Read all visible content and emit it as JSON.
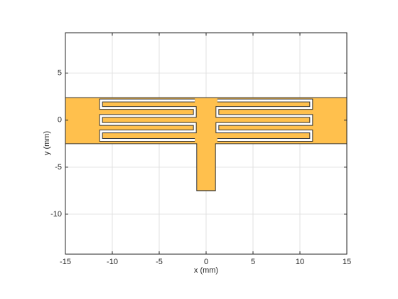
{
  "chart_data": {
    "type": "geometry",
    "xlabel": "x (mm)",
    "ylabel": "y (mm)",
    "xlim": [
      -15,
      15
    ],
    "ylim": [
      -14.25,
      9.3
    ],
    "xticks": [
      -15,
      -10,
      -5,
      0,
      5,
      10,
      15
    ],
    "yticks": [
      -10,
      -5,
      0,
      5
    ],
    "grid": true,
    "fill_color": "#ffc04d",
    "slot_color": "#ffffff",
    "edge_color": "#333333",
    "body": {
      "x": [
        -15,
        15,
        15,
        1,
        1,
        -1,
        -1,
        -15
      ],
      "y": [
        2.4,
        2.4,
        -2.5,
        -2.5,
        -7.5,
        -7.5,
        -2.5,
        -2.5
      ]
    },
    "slots": [
      {
        "x": [
          -1.2,
          -11.2,
          -11.2,
          -1.2,
          -1.2,
          -11.2,
          -11.2,
          -1.2,
          -1.2,
          -11.2,
          -11.2,
          -1.2
        ],
        "y": [
          2.1,
          2.1,
          1.3,
          1.3,
          0.45,
          0.45,
          -0.4,
          -0.4,
          -1.2,
          -1.2,
          -2.1,
          -2.1
        ]
      },
      {
        "x": [
          1.2,
          11.2,
          11.2,
          1.2,
          1.2,
          11.2,
          11.2,
          1.2,
          1.2,
          11.2,
          11.2,
          1.2
        ],
        "y": [
          2.1,
          2.1,
          1.3,
          1.3,
          0.45,
          0.45,
          -0.4,
          -0.4,
          -1.2,
          -1.2,
          -2.1,
          -2.1
        ]
      }
    ]
  }
}
